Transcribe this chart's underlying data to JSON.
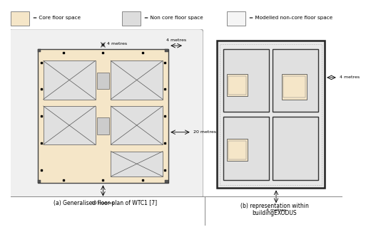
{
  "fig_width": 4.74,
  "fig_height": 3.06,
  "core_floor_color": "#f5e6c8",
  "non_core_color": "#e8e8e8",
  "modelled_color": "#f0f0f0",
  "legend_labels": [
    "= Core floor space",
    "= Non core floor space",
    "= Modelled non-core floor space"
  ],
  "caption_a": "(a) Generalised floor plan of WTC1 [7]",
  "caption_b": "(b) representation within\nbuildingEXODUS",
  "ann_4m_top": "4 metres",
  "ann_4m_right": "4 metres",
  "ann_20m": "20 metres",
  "ann_10m": "10 metres",
  "ann_4m_right2": "4 metres",
  "ann_4m_bot2": "4 metres"
}
